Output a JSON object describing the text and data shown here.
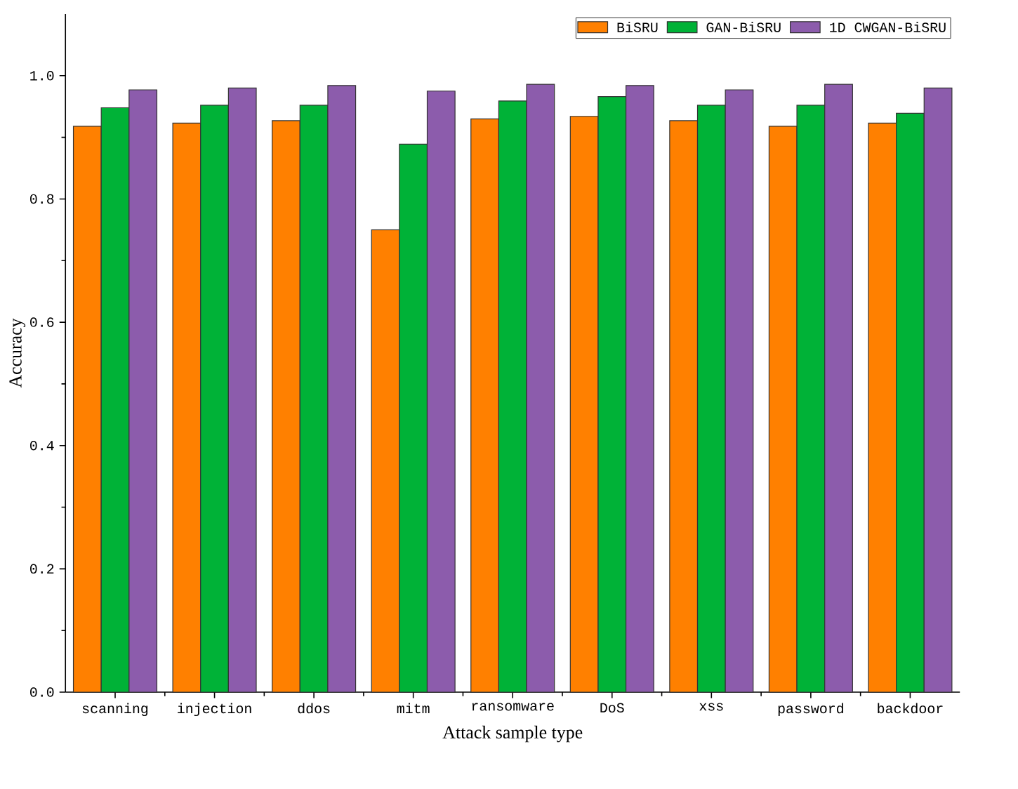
{
  "chart_data": {
    "type": "bar",
    "xlabel": "Attack sample type",
    "ylabel": "Accuracy",
    "categories": [
      "scanning",
      "injection",
      "ddos",
      "mitm",
      "ransomware",
      "DoS",
      "xss",
      "password",
      "backdoor"
    ],
    "series": [
      {
        "name": "BiSRU",
        "color": "#ff8000",
        "values": [
          0.918,
          0.923,
          0.927,
          0.75,
          0.93,
          0.934,
          0.927,
          0.918,
          0.923
        ]
      },
      {
        "name": "GAN-BiSRU",
        "color": "#00b237",
        "values": [
          0.948,
          0.952,
          0.952,
          0.889,
          0.959,
          0.966,
          0.952,
          0.952,
          0.939
        ]
      },
      {
        "name": "1D CWGAN-BiSRU",
        "color": "#8c5cac",
        "values": [
          0.977,
          0.98,
          0.984,
          0.975,
          0.986,
          0.984,
          0.977,
          0.986,
          0.98
        ]
      }
    ],
    "ylim": [
      0,
      1.1
    ],
    "yticks": [
      {
        "value": 0,
        "label": "0.0"
      },
      {
        "value": 0.2,
        "label": "0.2"
      },
      {
        "value": 0.4,
        "label": "0.4"
      },
      {
        "value": 0.6,
        "label": "0.6"
      },
      {
        "value": 0.8,
        "label": "0.8"
      },
      {
        "value": 1.0,
        "label": "1.0"
      }
    ],
    "legend": "top right"
  }
}
